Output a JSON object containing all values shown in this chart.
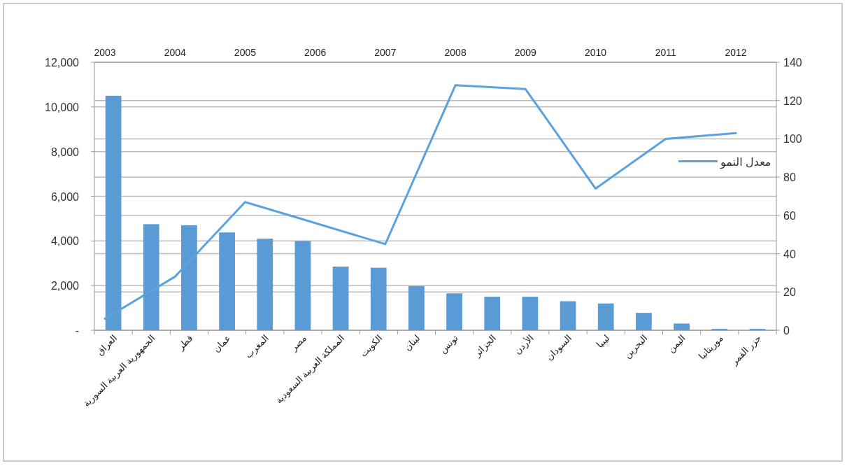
{
  "chart_data": [
    {
      "type": "bar",
      "categories": [
        "العراق",
        "الجمهورية العربية السورية",
        "قطر",
        "عمان",
        "المغرب",
        "مصر",
        "المملكة العربية السعودية",
        "الكويت",
        "لبنان",
        "تونس",
        "الجزائر",
        "الأردن",
        "السودان",
        "ليبيا",
        "البحرين",
        "اليمن",
        "موريتانيا",
        "جزر القمر"
      ],
      "series": [
        {
          "color": "#5b9bd5",
          "values": [
            10500,
            4750,
            4700,
            4380,
            4100,
            4000,
            2850,
            2800,
            1980,
            1650,
            1500,
            1500,
            1300,
            1200,
            780,
            300,
            60,
            60
          ]
        }
      ],
      "ylim": [
        0,
        12000
      ],
      "yticks": [
        {
          "value": 0,
          "label": "-"
        },
        {
          "value": 2000,
          "label": "2,000"
        },
        {
          "value": 4000,
          "label": "4,000"
        },
        {
          "value": 6000,
          "label": "6,000"
        },
        {
          "value": 8000,
          "label": "8,000"
        },
        {
          "value": 10000,
          "label": "10,000"
        },
        {
          "value": 12000,
          "label": "12,000"
        }
      ],
      "grid": "y"
    },
    {
      "type": "line",
      "categories": [
        "2003",
        "2004",
        "2005",
        "2006",
        "2007",
        "2008",
        "2009",
        "2010",
        "2011",
        "2012"
      ],
      "series": [
        {
          "name": "معدل النمو",
          "color": "#5ba3e0",
          "values": [
            6,
            28,
            67,
            56,
            45,
            128,
            126,
            74,
            100,
            103
          ]
        }
      ],
      "ylim": [
        0,
        140
      ],
      "yticks": [
        0,
        20,
        40,
        60,
        80,
        100,
        120,
        140
      ],
      "grid": "y",
      "legend": "right"
    }
  ]
}
